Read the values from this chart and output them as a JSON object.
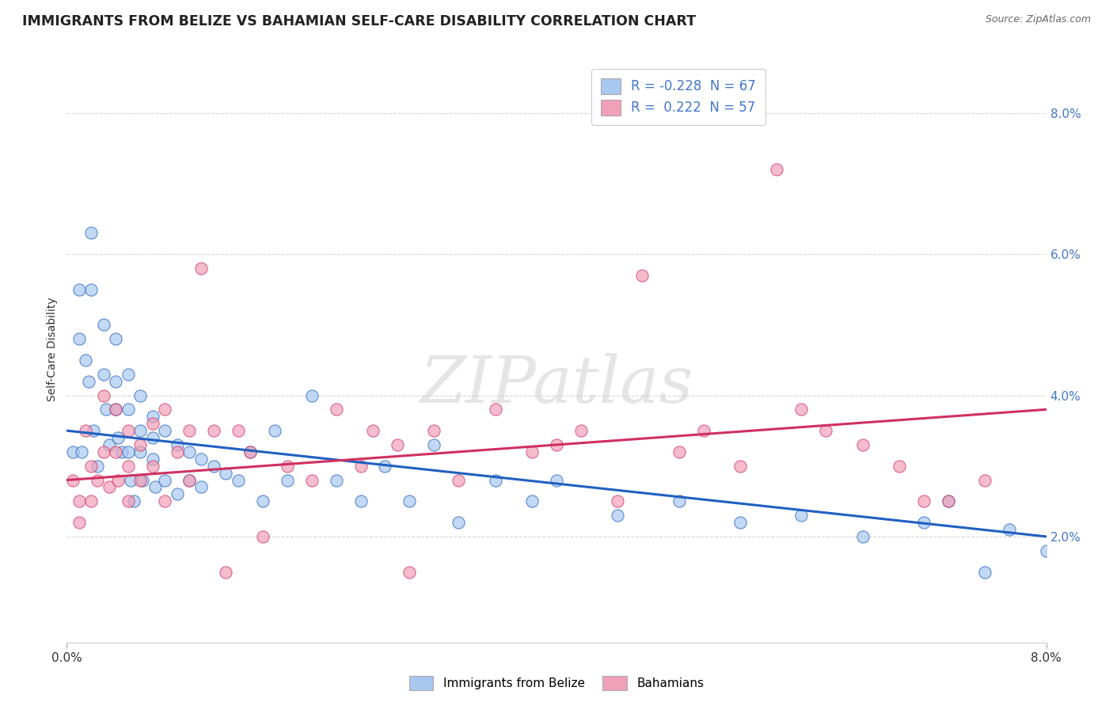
{
  "title": "IMMIGRANTS FROM BELIZE VS BAHAMIAN SELF-CARE DISABILITY CORRELATION CHART",
  "source_text": "Source: ZipAtlas.com",
  "ylabel": "Self-Care Disability",
  "xlim": [
    0.0,
    0.08
  ],
  "ylim": [
    0.005,
    0.088
  ],
  "ytick_labels": [
    "2.0%",
    "4.0%",
    "6.0%",
    "8.0%"
  ],
  "yticks": [
    0.02,
    0.04,
    0.06,
    0.08
  ],
  "blue_color": "#A8C8F0",
  "pink_color": "#F0A0B8",
  "blue_line_color": "#2060C0",
  "pink_line_color": "#D03060",
  "legend_R_blue": "-0.228",
  "legend_N_blue": "67",
  "legend_R_pink": "0.222",
  "legend_N_pink": "57",
  "legend_label_blue": "Immigrants from Belize",
  "legend_label_pink": "Bahamians",
  "watermark": "ZIPatlas",
  "blue_line_x0": 0.0,
  "blue_line_y0": 0.035,
  "blue_line_x1": 0.08,
  "blue_line_y1": 0.02,
  "pink_line_x0": 0.0,
  "pink_line_y0": 0.028,
  "pink_line_x1": 0.08,
  "pink_line_y1": 0.038,
  "blue_x": [
    0.0005,
    0.001,
    0.001,
    0.0012,
    0.0015,
    0.0018,
    0.002,
    0.002,
    0.0022,
    0.0025,
    0.003,
    0.003,
    0.0032,
    0.0035,
    0.004,
    0.004,
    0.004,
    0.0042,
    0.0045,
    0.005,
    0.005,
    0.005,
    0.0052,
    0.0055,
    0.006,
    0.006,
    0.006,
    0.0062,
    0.007,
    0.007,
    0.007,
    0.0072,
    0.008,
    0.008,
    0.009,
    0.009,
    0.01,
    0.01,
    0.011,
    0.011,
    0.012,
    0.013,
    0.014,
    0.015,
    0.016,
    0.017,
    0.018,
    0.02,
    0.022,
    0.024,
    0.026,
    0.028,
    0.03,
    0.032,
    0.035,
    0.038,
    0.04,
    0.045,
    0.05,
    0.055,
    0.06,
    0.065,
    0.07,
    0.072,
    0.075,
    0.077,
    0.08
  ],
  "blue_y": [
    0.032,
    0.055,
    0.048,
    0.032,
    0.045,
    0.042,
    0.063,
    0.055,
    0.035,
    0.03,
    0.05,
    0.043,
    0.038,
    0.033,
    0.048,
    0.042,
    0.038,
    0.034,
    0.032,
    0.043,
    0.038,
    0.032,
    0.028,
    0.025,
    0.04,
    0.035,
    0.032,
    0.028,
    0.037,
    0.034,
    0.031,
    0.027,
    0.035,
    0.028,
    0.033,
    0.026,
    0.032,
    0.028,
    0.031,
    0.027,
    0.03,
    0.029,
    0.028,
    0.032,
    0.025,
    0.035,
    0.028,
    0.04,
    0.028,
    0.025,
    0.03,
    0.025,
    0.033,
    0.022,
    0.028,
    0.025,
    0.028,
    0.023,
    0.025,
    0.022,
    0.023,
    0.02,
    0.022,
    0.025,
    0.015,
    0.021,
    0.018
  ],
  "pink_x": [
    0.0005,
    0.001,
    0.001,
    0.0015,
    0.002,
    0.002,
    0.0025,
    0.003,
    0.003,
    0.0035,
    0.004,
    0.004,
    0.0042,
    0.005,
    0.005,
    0.005,
    0.006,
    0.006,
    0.007,
    0.007,
    0.008,
    0.008,
    0.009,
    0.01,
    0.01,
    0.011,
    0.012,
    0.013,
    0.014,
    0.015,
    0.016,
    0.018,
    0.02,
    0.022,
    0.024,
    0.025,
    0.027,
    0.028,
    0.03,
    0.032,
    0.035,
    0.038,
    0.04,
    0.042,
    0.045,
    0.047,
    0.05,
    0.052,
    0.055,
    0.058,
    0.06,
    0.062,
    0.065,
    0.068,
    0.07,
    0.072,
    0.075
  ],
  "pink_y": [
    0.028,
    0.025,
    0.022,
    0.035,
    0.03,
    0.025,
    0.028,
    0.04,
    0.032,
    0.027,
    0.038,
    0.032,
    0.028,
    0.035,
    0.03,
    0.025,
    0.033,
    0.028,
    0.036,
    0.03,
    0.038,
    0.025,
    0.032,
    0.035,
    0.028,
    0.058,
    0.035,
    0.015,
    0.035,
    0.032,
    0.02,
    0.03,
    0.028,
    0.038,
    0.03,
    0.035,
    0.033,
    0.015,
    0.035,
    0.028,
    0.038,
    0.032,
    0.033,
    0.035,
    0.025,
    0.057,
    0.032,
    0.035,
    0.03,
    0.072,
    0.038,
    0.035,
    0.033,
    0.03,
    0.025,
    0.025,
    0.028
  ]
}
